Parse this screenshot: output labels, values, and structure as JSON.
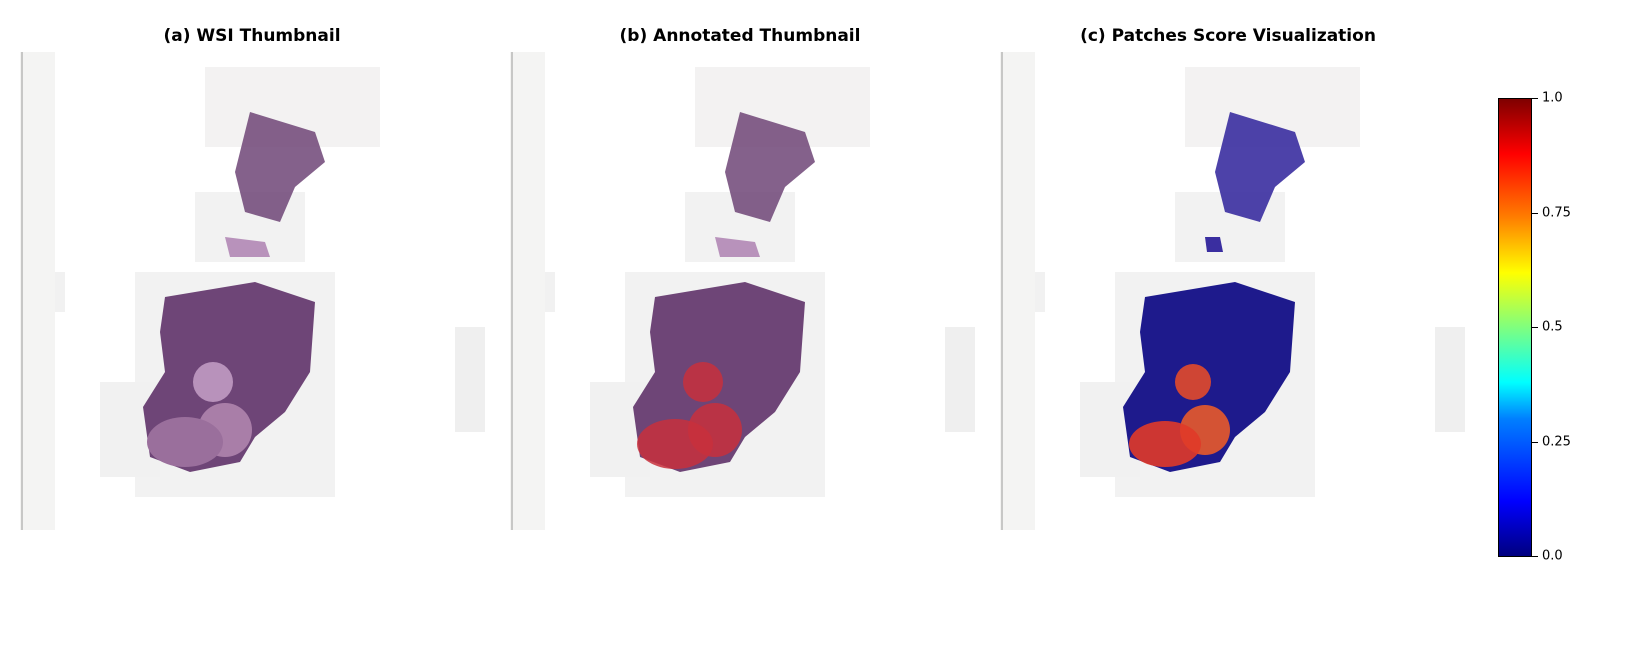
{
  "panels": [
    {
      "title": "(a) WSI Thumbnail",
      "overlay": "none"
    },
    {
      "title": "(b) Annotated Thumbnail",
      "overlay": "annotation"
    },
    {
      "title": "(c) Patches Score Visualization",
      "overlay": "heatmap"
    }
  ],
  "colorbar": {
    "ticks": [
      "0.0",
      "0.25",
      "0.5",
      "0.75",
      "1.0"
    ],
    "tick_values": [
      0,
      0.25,
      0.5,
      0.75,
      1.0
    ],
    "colormap": "jet"
  },
  "colors": {
    "tissue": "#6e4577",
    "tissue_light": "#b892bb",
    "annotation": "#c8303c",
    "heat_low": "#1e1a8c",
    "heat_high": "#e24a2a"
  }
}
